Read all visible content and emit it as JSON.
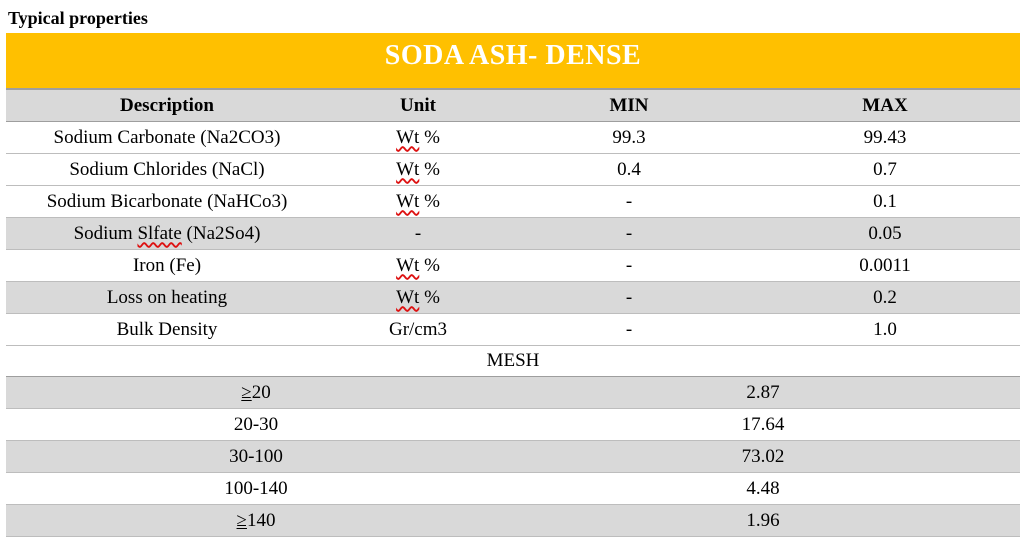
{
  "heading": "Typical properties",
  "banner": "SODA ASH- DENSE",
  "columns": {
    "description": "Description",
    "unit": "Unit",
    "min": "MIN",
    "max": "MAX"
  },
  "rows": [
    {
      "description": "Sodium Carbonate (Na2CO3)",
      "unit_word": "Wt",
      "unit_rest": " %",
      "min": "99.3",
      "max": "99.43"
    },
    {
      "description": "Sodium Chlorides (NaCl)",
      "unit_word": "Wt",
      "unit_rest": " %",
      "min": "0.4",
      "max": "0.7"
    },
    {
      "description": "Sodium Bicarbonate (NaHCo3)",
      "unit_word": "Wt",
      "unit_rest": " %",
      "min": "-",
      "max": "0.1"
    },
    {
      "description_pre": "Sodium ",
      "description_word": "Slfate",
      "description_post": " (Na2So4)",
      "unit": "-",
      "min": "-",
      "max": "0.05"
    },
    {
      "description": "Iron (Fe)",
      "unit_word": "Wt",
      "unit_rest": " %",
      "min": "-",
      "max": "0.0011"
    },
    {
      "description": "Loss on heating",
      "unit_word": "Wt",
      "unit_rest": " %",
      "min": "-",
      "max": "0.2"
    },
    {
      "description": "Bulk Density",
      "unit": "Gr/cm3",
      "min": "-",
      "max": "1.0"
    }
  ],
  "mesh": {
    "title": "MESH",
    "rows": [
      {
        "geq": "≥",
        "size": "20",
        "value": "2.87"
      },
      {
        "size": "20-30",
        "value": "17.64"
      },
      {
        "size": "30-100",
        "value": "73.02"
      },
      {
        "size": "100-140",
        "value": "4.48"
      },
      {
        "geq": "≥",
        "size": "140",
        "value": "1.96"
      }
    ]
  }
}
